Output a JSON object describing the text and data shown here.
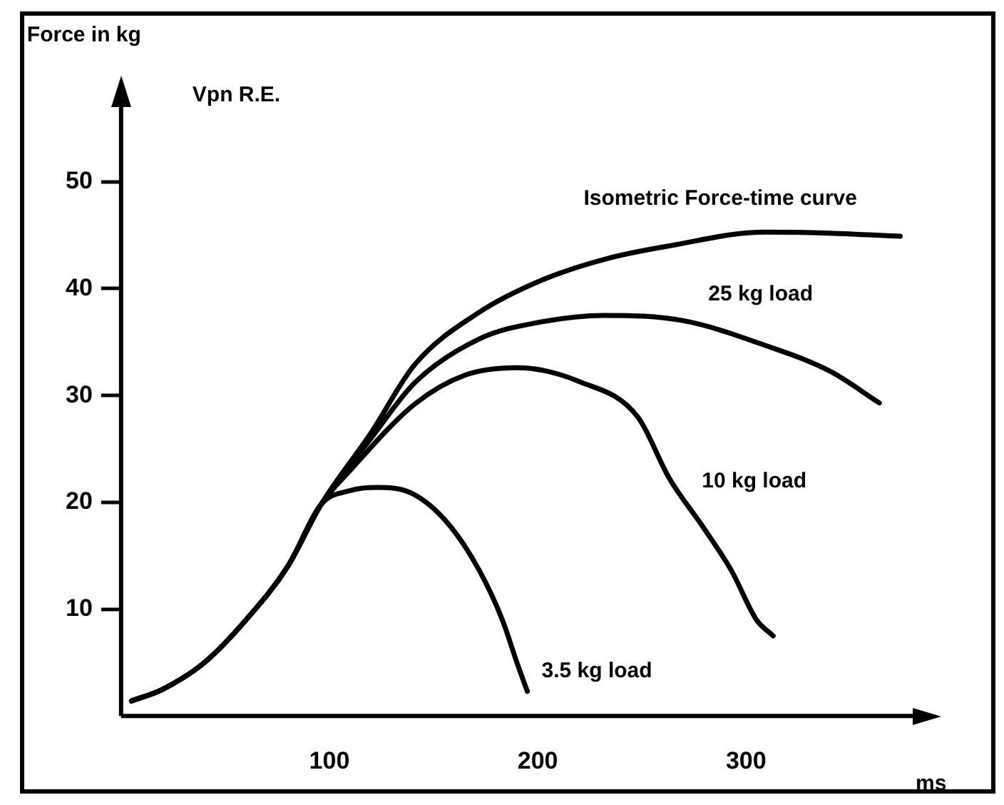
{
  "chart_data": {
    "type": "line",
    "xlabel": "ms",
    "ylabel": "Force in kg",
    "annotations": [
      "Vpn R.E."
    ],
    "xlim": [
      0,
      380
    ],
    "xticks": [
      100,
      200,
      300
    ],
    "ylim": [
      0,
      57
    ],
    "yticks": [
      10,
      20,
      30,
      40,
      50
    ],
    "grid": false,
    "legend": false,
    "marker": "none",
    "line_style": "solid",
    "series": [
      {
        "name": "Isometric Force-time curve",
        "color": "#000000",
        "x": [
          5,
          20,
          40,
          60,
          80,
          96,
          120,
          141,
          172,
          202,
          233,
          263,
          309,
          340,
          374
        ],
        "values": [
          1.4,
          2.5,
          5,
          9,
          14,
          19.8,
          26.5,
          32.9,
          37.8,
          40.8,
          42.8,
          44,
          45.3,
          45.2,
          44.9
        ]
      },
      {
        "name": "25 kg load",
        "color": "#000000",
        "x": [
          5,
          20,
          40,
          60,
          80,
          96,
          120,
          141,
          172,
          202,
          232,
          270,
          309,
          340,
          364
        ],
        "values": [
          1.4,
          2.5,
          5,
          9,
          14,
          19.8,
          26,
          31.2,
          35.3,
          36.9,
          37.5,
          37,
          34.7,
          32.3,
          29.3
        ]
      },
      {
        "name": "10 kg load",
        "color": "#000000",
        "x": [
          5,
          20,
          40,
          60,
          80,
          96,
          110,
          141,
          165,
          190,
          220,
          248,
          263,
          280,
          293,
          305,
          313
        ],
        "values": [
          1.4,
          2.5,
          5,
          9,
          14,
          19.8,
          23,
          29.2,
          31.9,
          32.6,
          31.3,
          28,
          22.3,
          17.5,
          13.6,
          9,
          7.5
        ]
      },
      {
        "name": "3.5 kg load",
        "color": "#000000",
        "x": [
          5,
          20,
          40,
          60,
          80,
          96,
          110,
          123,
          140,
          157,
          172,
          183,
          190,
          195
        ],
        "values": [
          1.4,
          2.5,
          5,
          9,
          14,
          19.8,
          21.1,
          21.4,
          20.8,
          18,
          13.6,
          9,
          5,
          2.3
        ]
      }
    ]
  }
}
